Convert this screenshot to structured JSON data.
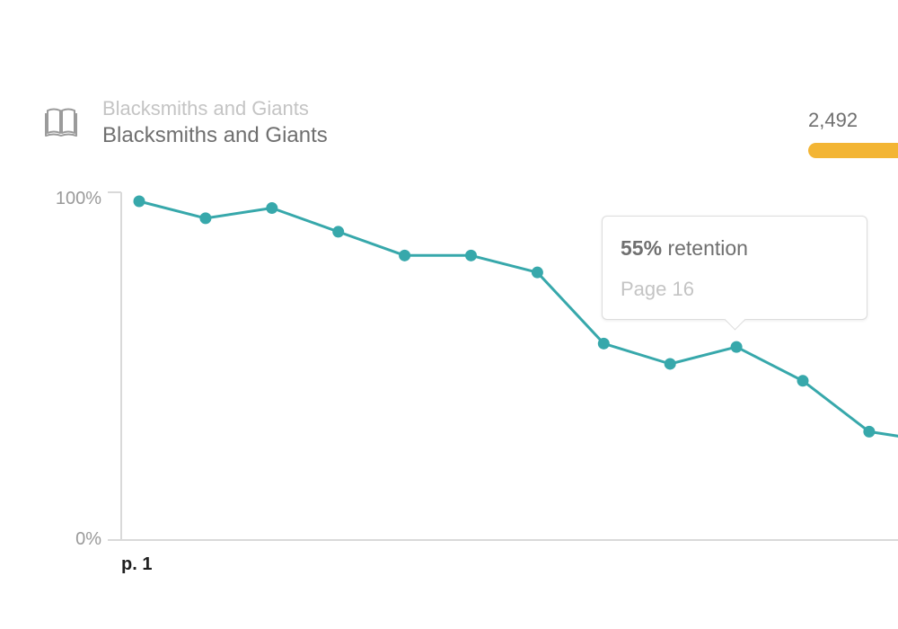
{
  "header": {
    "subtitle": "Blacksmiths and Giants",
    "title": "Blacksmiths and Giants",
    "count": "2,492",
    "icon": "book-icon"
  },
  "colors": {
    "line": "#37a8ab",
    "progress": "#f3b534",
    "axis": "#d9d9d9"
  },
  "tooltip": {
    "value": "55%",
    "label": "retention",
    "page": "Page 16"
  },
  "chart_data": {
    "type": "line",
    "title": "",
    "xlabel": "",
    "ylabel": "",
    "ylim": [
      0,
      100
    ],
    "y_tick_labels": [
      "100%",
      "0%"
    ],
    "x_tick_labels": [
      "p. 1"
    ],
    "grid": false,
    "series": [
      {
        "values": [
          100,
          95,
          98,
          91,
          84,
          84,
          79,
          58,
          52,
          57,
          47,
          32,
          29
        ]
      }
    ]
  }
}
